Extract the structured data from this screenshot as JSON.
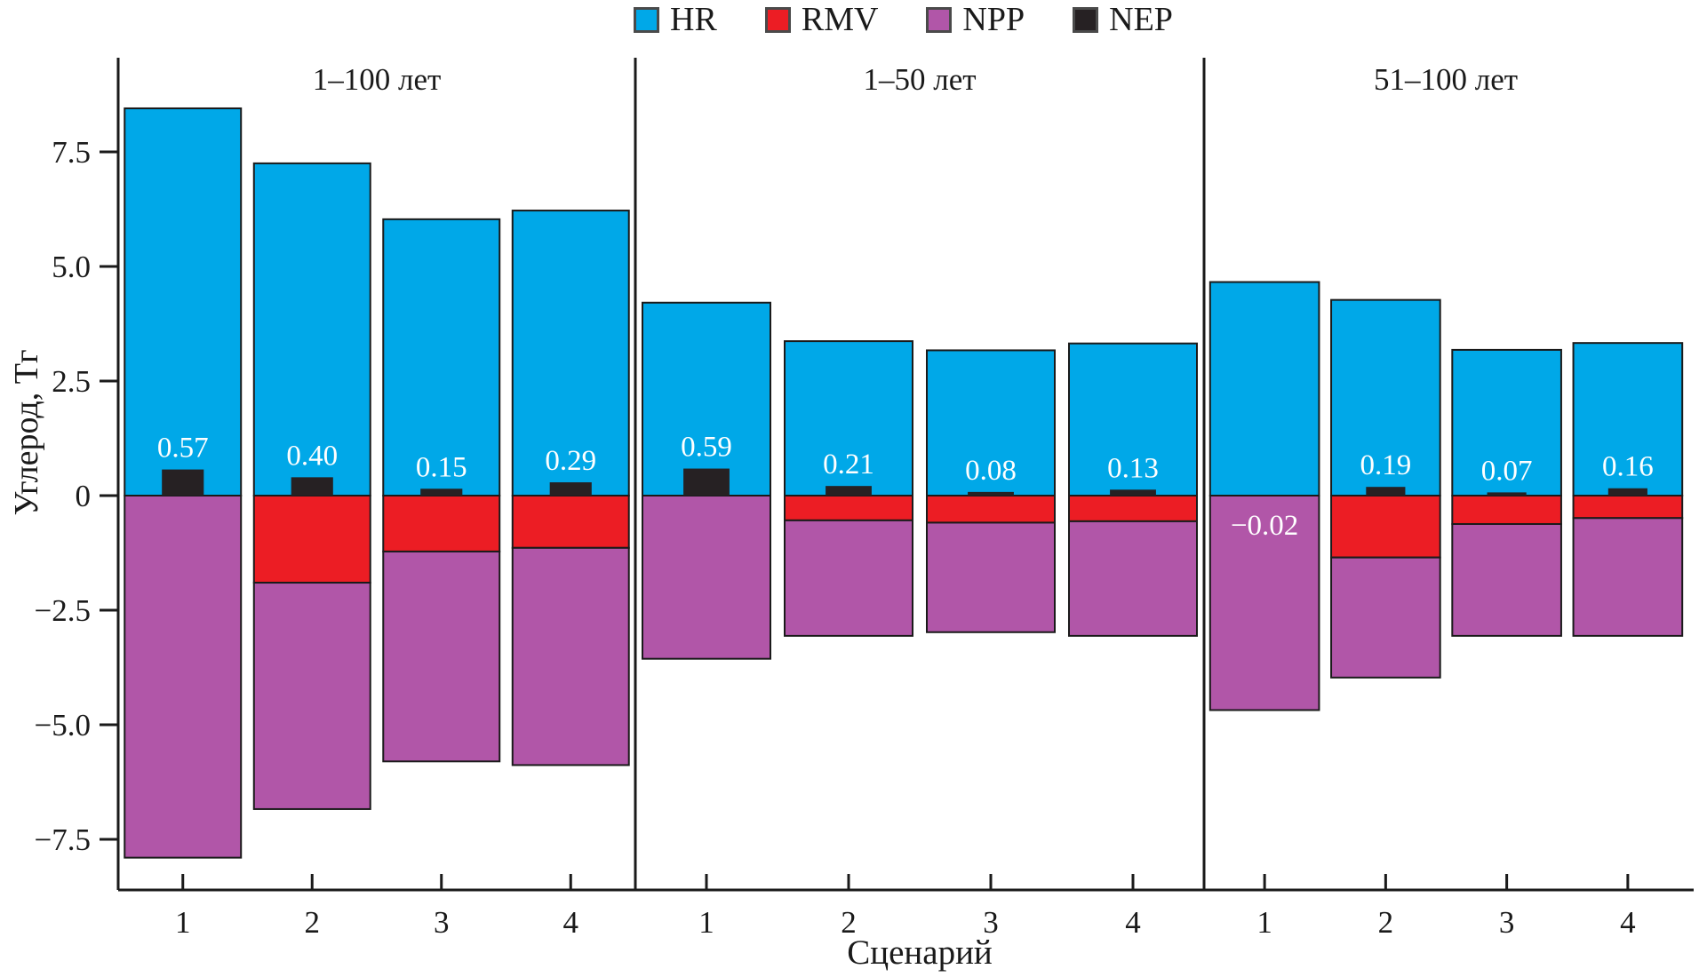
{
  "legend": {
    "items": [
      {
        "label": "HR",
        "color": "#00A8E8"
      },
      {
        "label": "RMV",
        "color": "#EC1D24"
      },
      {
        "label": "NPP",
        "color": "#B156A8"
      },
      {
        "label": "NEP",
        "color": "#262123"
      }
    ]
  },
  "axes": {
    "ylabel": "Углерод, Тг",
    "xlabel": "Сценарий",
    "yticks": [
      {
        "label": "7.5",
        "value": 7.5
      },
      {
        "label": "5.0",
        "value": 5.0
      },
      {
        "label": "2.5",
        "value": 2.5
      },
      {
        "label": "0",
        "value": 0
      },
      {
        "label": "−2.5",
        "value": -2.5
      },
      {
        "label": "−5.0",
        "value": -5.0
      },
      {
        "label": "−7.5",
        "value": -7.5
      }
    ],
    "ylim": [
      -8.6,
      9.6
    ]
  },
  "chart_data": {
    "type": "bar",
    "stacked": true,
    "unit": "Тг углерода",
    "grid": false,
    "legend_position": "top-center",
    "series": [
      "HR",
      "RMV",
      "NPP",
      "NEP"
    ],
    "series_colors": {
      "HR": "#00A8E8",
      "RMV": "#EC1D24",
      "NPP": "#B156A8",
      "NEP": "#262123"
    },
    "note": "HR положительный; RMV и NPP отрицательные сегменты; NEP — малый чёрный столбик у нуля с подписью",
    "panels": [
      {
        "title": "1–100 лет",
        "categories": [
          "1",
          "2",
          "3",
          "4"
        ],
        "bars": [
          {
            "scenario": "1",
            "HR": 8.45,
            "RMV": 0,
            "NPP": -7.9,
            "NEP": 0.57,
            "nep_label": "0.57"
          },
          {
            "scenario": "2",
            "HR": 7.25,
            "RMV": -1.9,
            "NPP": -4.94,
            "NEP": 0.4,
            "nep_label": "0.40"
          },
          {
            "scenario": "3",
            "HR": 6.03,
            "RMV": -1.22,
            "NPP": -4.58,
            "NEP": 0.15,
            "nep_label": "0.15"
          },
          {
            "scenario": "4",
            "HR": 6.22,
            "RMV": -1.14,
            "NPP": -4.74,
            "NEP": 0.29,
            "nep_label": "0.29"
          }
        ]
      },
      {
        "title": "1–50 лет",
        "categories": [
          "1",
          "2",
          "3",
          "4"
        ],
        "bars": [
          {
            "scenario": "1",
            "HR": 4.21,
            "RMV": 0,
            "NPP": -3.56,
            "NEP": 0.59,
            "nep_label": "0.59"
          },
          {
            "scenario": "2",
            "HR": 3.37,
            "RMV": -0.54,
            "NPP": -2.52,
            "NEP": 0.21,
            "nep_label": "0.21"
          },
          {
            "scenario": "3",
            "HR": 3.17,
            "RMV": -0.59,
            "NPP": -2.39,
            "NEP": 0.08,
            "nep_label": "0.08"
          },
          {
            "scenario": "4",
            "HR": 3.32,
            "RMV": -0.56,
            "NPP": -2.5,
            "NEP": 0.13,
            "nep_label": "0.13"
          }
        ]
      },
      {
        "title": "51–100 лет",
        "categories": [
          "1",
          "2",
          "3",
          "4"
        ],
        "bars": [
          {
            "scenario": "1",
            "HR": 4.66,
            "RMV": 0,
            "NPP": -4.68,
            "NEP": -0.02,
            "nep_label": "−0.02"
          },
          {
            "scenario": "2",
            "HR": 4.27,
            "RMV": -1.35,
            "NPP": -2.62,
            "NEP": 0.19,
            "nep_label": "0.19"
          },
          {
            "scenario": "3",
            "HR": 3.18,
            "RMV": -0.62,
            "NPP": -2.44,
            "NEP": 0.07,
            "nep_label": "0.07"
          },
          {
            "scenario": "4",
            "HR": 3.33,
            "RMV": -0.49,
            "NPP": -2.57,
            "NEP": 0.16,
            "nep_label": "0.16"
          }
        ]
      }
    ]
  }
}
